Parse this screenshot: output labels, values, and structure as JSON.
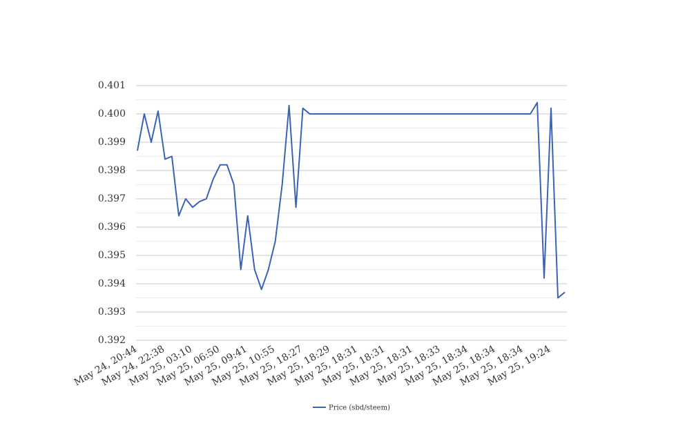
{
  "chart_data": {
    "type": "line",
    "categories": [
      "May 24, 20:44",
      null,
      null,
      null,
      "May 24, 22:38",
      null,
      null,
      null,
      "May 25, 03:10",
      null,
      null,
      null,
      "May 25, 06:50",
      null,
      null,
      null,
      "May 25, 09:41",
      null,
      null,
      null,
      "May 25, 10:55",
      null,
      null,
      null,
      "May 25, 18:27",
      null,
      null,
      null,
      "May 25, 18:29",
      null,
      null,
      null,
      "May 25, 18:31",
      null,
      null,
      null,
      "May 25, 18:31",
      null,
      null,
      null,
      "May 25, 18:31",
      null,
      null,
      null,
      "May 25, 18:33",
      null,
      null,
      null,
      "May 25, 18:34",
      null,
      null,
      null,
      "May 25, 18:34",
      null,
      null,
      null,
      "May 25, 18:34",
      null,
      null,
      null,
      "May 25, 19:24",
      null,
      null
    ],
    "series": [
      {
        "name": "Price (sbd/steem)",
        "color": "#3a62b5",
        "values": [
          0.3987,
          0.4,
          0.399,
          0.4001,
          0.3984,
          0.3985,
          0.3964,
          0.397,
          0.3967,
          0.3969,
          0.397,
          0.3977,
          0.3982,
          0.3982,
          0.3975,
          0.3945,
          0.3964,
          0.3945,
          0.3938,
          0.3945,
          0.3955,
          0.3975,
          0.4003,
          0.3967,
          0.4002,
          0.4,
          0.4,
          0.4,
          0.4,
          0.4,
          0.4,
          0.4,
          0.4,
          0.4,
          0.4,
          0.4,
          0.4,
          0.4,
          0.4,
          0.4,
          0.4,
          0.4,
          0.4,
          0.4,
          0.4,
          0.4,
          0.4,
          0.4,
          0.4,
          0.4,
          0.4,
          0.4,
          0.4,
          0.4,
          0.4,
          0.4,
          0.4,
          0.4,
          0.4004,
          0.3942,
          0.4002,
          0.3935,
          0.3937
        ]
      }
    ],
    "ylim": [
      0.392,
      0.401
    ],
    "yticks": [
      0.392,
      0.393,
      0.394,
      0.395,
      0.396,
      0.397,
      0.398,
      0.399,
      {
        "value": 0.4,
        "label": "0.400"
      },
      0.401
    ],
    "minor_yticks": [
      0.3925,
      0.3935,
      0.3945,
      0.3955,
      0.3965,
      0.3975,
      0.3985,
      0.3995,
      0.4005
    ],
    "grid": true,
    "legend": "bottom"
  }
}
